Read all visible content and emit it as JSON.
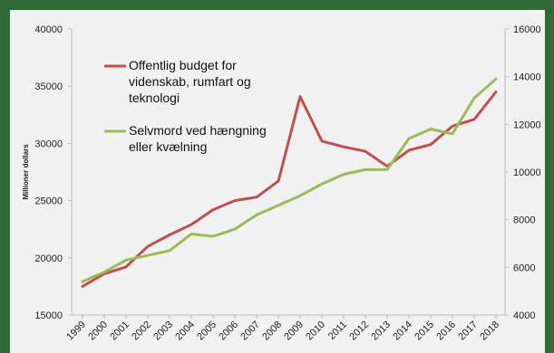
{
  "chart_data": {
    "type": "line",
    "categories": [
      "1999",
      "2000",
      "2001",
      "2002",
      "2003",
      "2004",
      "2005",
      "2006",
      "2007",
      "2008",
      "2009",
      "2010",
      "2011",
      "2012",
      "2013",
      "2014",
      "2015",
      "2016",
      "2017",
      "2018"
    ],
    "ylabel": "Millioner dollars",
    "y2label": "",
    "ylim": [
      15000,
      40000
    ],
    "yticks": [
      "40000",
      "35000",
      "30000",
      "25000",
      "20000",
      "15000"
    ],
    "y2lim": [
      4000,
      16000
    ],
    "y2ticks": [
      "16000",
      "14000",
      "12000",
      "10000",
      "8000",
      "6000",
      "4000"
    ],
    "grid": false,
    "legend_position": "top-left",
    "colors": {
      "series1": "#c0504d",
      "series2": "#9bbb59"
    },
    "series": [
      {
        "name": "Offentlig budget for videnskab, rumfart og teknologi",
        "name_lines": [
          "Offentlig budget for",
          "videnskab, rumfart og",
          "teknologi"
        ],
        "axis": "left",
        "values": [
          17500,
          18600,
          19200,
          21000,
          22000,
          22900,
          24200,
          25000,
          25300,
          26700,
          34100,
          30200,
          29700,
          29300,
          28000,
          29400,
          29900,
          31500,
          32100,
          34500
        ]
      },
      {
        "name": "Selvmord ved hængning eller kvælning",
        "name_lines": [
          "Selvmord ved hængning",
          "eller kvælning"
        ],
        "axis": "right",
        "values": [
          5400,
          5800,
          6300,
          6500,
          6700,
          7400,
          7300,
          7600,
          8200,
          8600,
          9000,
          9500,
          9900,
          10100,
          10100,
          11400,
          11800,
          11600,
          13100,
          13900
        ]
      }
    ]
  }
}
